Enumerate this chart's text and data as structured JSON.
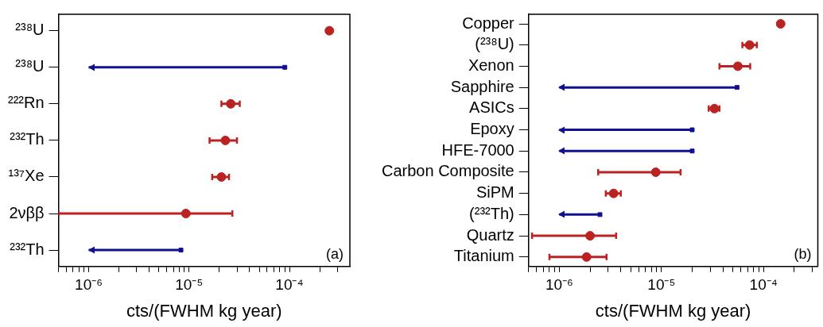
{
  "chart_data": [
    {
      "type": "scatter",
      "orientation": "horizontal",
      "log": "x",
      "xlabel": "cts/(FWHM kg year)",
      "annotations": [
        "(a)"
      ],
      "categories": [
        "²³⁸U",
        "²³⁸U",
        "²²²Rn",
        "²³²Th",
        "¹³⁷Xe",
        "2νββ",
        "²³²Th"
      ],
      "xlim": [
        5e-07,
        0.0004
      ],
      "xticks": [
        {
          "value": 5e-07,
          "label": null
        },
        {
          "value": 6e-07,
          "label": null
        },
        {
          "value": 7e-07,
          "label": null
        },
        {
          "value": 8e-07,
          "label": null
        },
        {
          "value": 9e-07,
          "label": null
        },
        {
          "value": 1e-06,
          "label": "10⁻⁶"
        },
        {
          "value": 2e-06,
          "label": null
        },
        {
          "value": 3e-06,
          "label": null
        },
        {
          "value": 4e-06,
          "label": null
        },
        {
          "value": 5e-06,
          "label": null
        },
        {
          "value": 6e-06,
          "label": null
        },
        {
          "value": 7e-06,
          "label": null
        },
        {
          "value": 8e-06,
          "label": null
        },
        {
          "value": 9e-06,
          "label": null
        },
        {
          "value": 1e-05,
          "label": "10⁻⁵"
        },
        {
          "value": 2e-05,
          "label": null
        },
        {
          "value": 3e-05,
          "label": null
        },
        {
          "value": 4e-05,
          "label": null
        },
        {
          "value": 5e-05,
          "label": null
        },
        {
          "value": 6e-05,
          "label": null
        },
        {
          "value": 7e-05,
          "label": null
        },
        {
          "value": 8e-05,
          "label": null
        },
        {
          "value": 9e-05,
          "label": null
        },
        {
          "value": 0.0001,
          "label": "10⁻⁴"
        },
        {
          "value": 0.0002,
          "label": null
        },
        {
          "value": 0.0003,
          "label": null
        }
      ],
      "series": [
        {
          "type": "scatter",
          "color": "#bb2222",
          "marker": "circle",
          "values": [
            0.00025,
            null,
            2.6e-05,
            2.3e-05,
            2.1e-05,
            9.3e-06,
            null
          ],
          "errors": [
            null,
            null,
            [
              2.1e-05,
              3.2e-05
            ],
            [
              1.6e-05,
              3e-05
            ],
            [
              1.7e-05,
              2.5e-05
            ],
            [
              5e-07,
              2.7e-05
            ],
            null
          ]
        },
        {
          "type": "scatter",
          "color": "#101090",
          "marker": "square",
          "values": [
            null,
            9e-05,
            null,
            null,
            null,
            null,
            8.3e-06
          ],
          "errors": [
            null,
            [
              1e-06,
              9e-05
            ],
            null,
            null,
            null,
            null,
            [
              1e-06,
              8.3e-06
            ]
          ]
        }
      ]
    },
    {
      "type": "scatter",
      "orientation": "horizontal",
      "log": "x",
      "xlabel": "cts/(FWHM kg year)",
      "annotations": [
        "(b)"
      ],
      "categories": [
        "Copper",
        "(²³⁸U)",
        "Xenon",
        "Sapphire",
        "ASICs",
        "Epoxy",
        "HFE-7000",
        "Carbon Composite",
        "SiPM",
        "(²³²Th)",
        "Quartz",
        "Titanium"
      ],
      "xlim": [
        5e-07,
        0.00034
      ],
      "xticks": [
        {
          "value": 5e-07,
          "label": null
        },
        {
          "value": 6e-07,
          "label": null
        },
        {
          "value": 7e-07,
          "label": null
        },
        {
          "value": 8e-07,
          "label": null
        },
        {
          "value": 9e-07,
          "label": null
        },
        {
          "value": 1e-06,
          "label": "10⁻⁶"
        },
        {
          "value": 2e-06,
          "label": null
        },
        {
          "value": 3e-06,
          "label": null
        },
        {
          "value": 4e-06,
          "label": null
        },
        {
          "value": 5e-06,
          "label": null
        },
        {
          "value": 6e-06,
          "label": null
        },
        {
          "value": 7e-06,
          "label": null
        },
        {
          "value": 8e-06,
          "label": null
        },
        {
          "value": 9e-06,
          "label": null
        },
        {
          "value": 1e-05,
          "label": "10⁻⁵"
        },
        {
          "value": 2e-05,
          "label": null
        },
        {
          "value": 3e-05,
          "label": null
        },
        {
          "value": 4e-05,
          "label": null
        },
        {
          "value": 5e-05,
          "label": null
        },
        {
          "value": 6e-05,
          "label": null
        },
        {
          "value": 7e-05,
          "label": null
        },
        {
          "value": 8e-05,
          "label": null
        },
        {
          "value": 9e-05,
          "label": null
        },
        {
          "value": 0.0001,
          "label": "10⁻⁴"
        },
        {
          "value": 0.0002,
          "label": null
        },
        {
          "value": 0.0003,
          "label": null
        }
      ],
      "series": [
        {
          "type": "scatter",
          "color": "#bb2222",
          "marker": "circle",
          "values": [
            0.000147,
            7.3e-05,
            5.6e-05,
            null,
            3.3e-05,
            null,
            null,
            8.8e-06,
            3.4e-06,
            null,
            2e-06,
            1.85e-06
          ],
          "errors": [
            null,
            [
              6.2e-05,
              8.6e-05
            ],
            [
              3.7e-05,
              7.4e-05
            ],
            null,
            [
              2.9e-05,
              3.7e-05
            ],
            null,
            null,
            [
              2.4e-06,
              1.54e-05
            ],
            [
              2.85e-06,
              4e-06
            ],
            null,
            [
              5.4e-07,
              3.6e-06
            ],
            [
              8e-07,
              2.9e-06
            ]
          ]
        },
        {
          "type": "scatter",
          "color": "#101090",
          "marker": "square",
          "values": [
            null,
            null,
            null,
            5.5e-05,
            null,
            2e-05,
            2e-05,
            null,
            null,
            2.5e-06,
            null,
            null
          ],
          "errors": [
            null,
            null,
            null,
            [
              1e-06,
              5.5e-05
            ],
            null,
            [
              1e-06,
              2e-05
            ],
            [
              1e-06,
              2e-05
            ],
            null,
            null,
            [
              1e-06,
              2.5e-06
            ],
            null,
            null
          ]
        }
      ]
    }
  ]
}
